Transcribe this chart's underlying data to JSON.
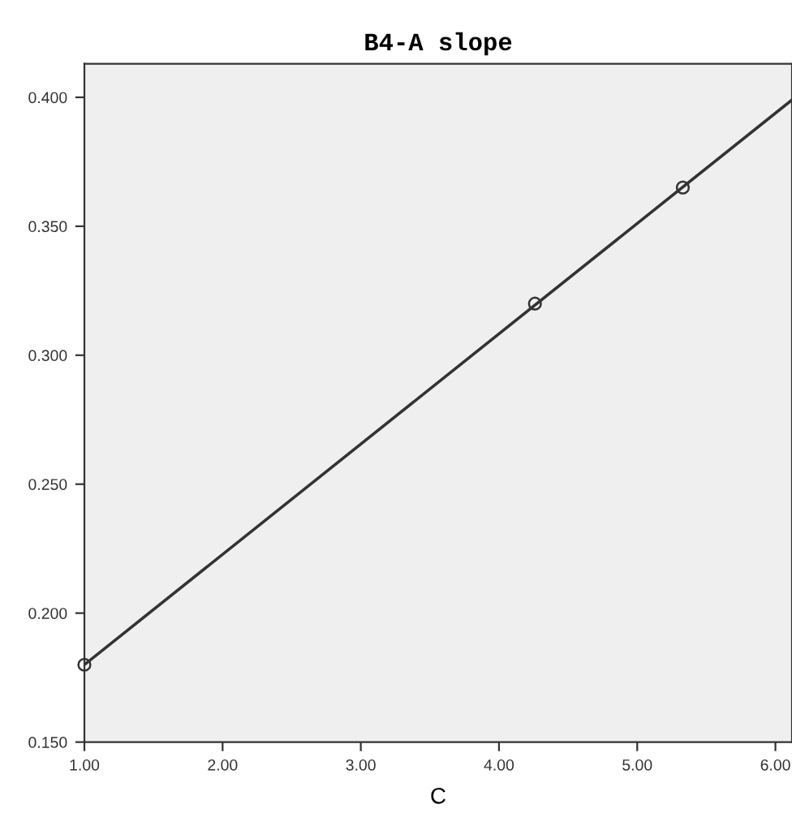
{
  "chart_data": {
    "type": "scatter",
    "title": "B4-A slope",
    "xlabel": "C",
    "series": [
      {
        "color": "#333333",
        "x": [
          1.0,
          4.26,
          5.33
        ],
        "values": [
          0.18,
          0.32,
          0.365
        ],
        "marker": "circle"
      },
      {
        "type": "line",
        "color": "#333333",
        "x": [
          1.0,
          6.12
        ],
        "values": [
          0.18,
          0.399
        ],
        "line_style": "solid"
      }
    ],
    "xlim": [
      1.0,
      6.12
    ],
    "ylim": [
      0.15,
      0.413
    ],
    "xticks": [
      {
        "value": 1,
        "label": "1.00"
      },
      {
        "value": 2,
        "label": "2.00"
      },
      {
        "value": 3,
        "label": "3.00"
      },
      {
        "value": 4,
        "label": "4.00"
      },
      {
        "value": 5,
        "label": "5.00"
      },
      {
        "value": 6,
        "label": "6.00"
      }
    ],
    "yticks": [
      {
        "value": 0.15,
        "label": "0.150"
      },
      {
        "value": 0.2,
        "label": "0.200"
      },
      {
        "value": 0.25,
        "label": "0.250"
      },
      {
        "value": 0.3,
        "label": "0.300"
      },
      {
        "value": 0.35,
        "label": "0.350"
      },
      {
        "value": 0.4,
        "label": "0.400"
      }
    ],
    "grid": false,
    "legend": false
  }
}
